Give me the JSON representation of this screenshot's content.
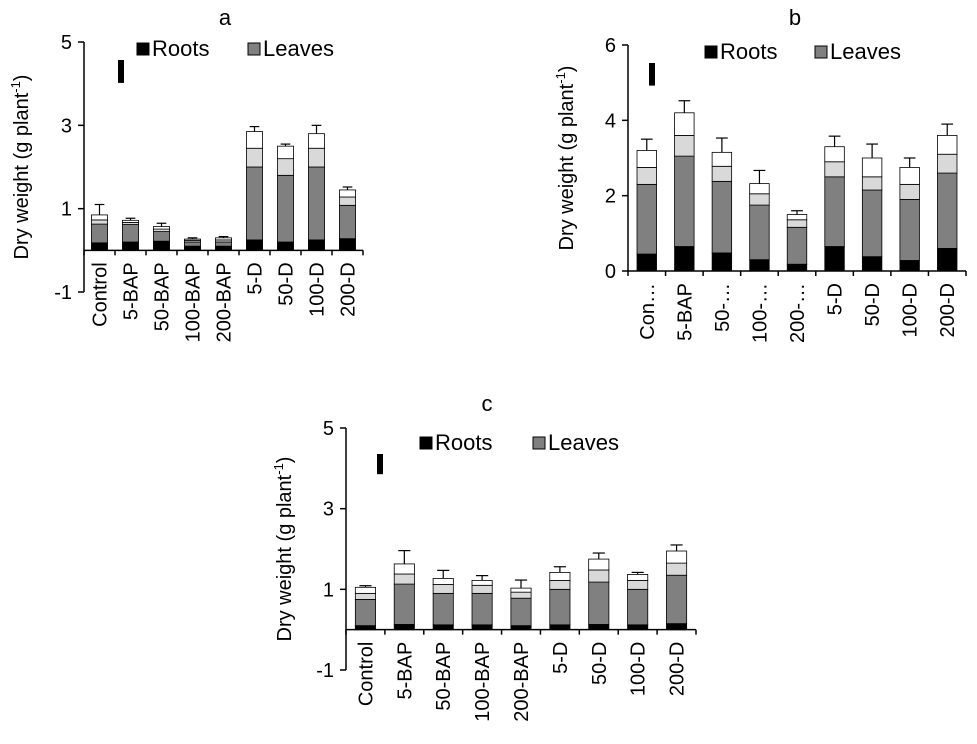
{
  "chart_data": [
    {
      "type": "bar",
      "panel_label": "a",
      "ylabel_main": "Dry weight (g plant",
      "ylabel_sup": "-1",
      "ylabel_close": ")",
      "ylim": [
        -1,
        5
      ],
      "yticks": [
        "-1",
        "1",
        "3",
        "5"
      ],
      "ytick_values": [
        -1,
        1,
        3,
        5
      ],
      "categories": [
        "Control",
        "5-BAP",
        "50-BAP",
        "100-BAP",
        "200-BAP",
        "5-D",
        "50-D",
        "100-D",
        "200-D"
      ],
      "series": [
        {
          "name": "Roots",
          "color": "#000000",
          "values": [
            0.18,
            0.2,
            0.22,
            0.1,
            0.1,
            0.25,
            0.2,
            0.25,
            0.28
          ]
        },
        {
          "name": "Leaves",
          "color": "#808080",
          "values": [
            0.45,
            0.42,
            0.23,
            0.1,
            0.1,
            1.75,
            1.6,
            1.75,
            0.8
          ]
        },
        {
          "color": "#d9d9d9",
          "values": [
            0.1,
            0.05,
            0.06,
            0.04,
            0.05,
            0.45,
            0.4,
            0.45,
            0.2
          ]
        },
        {
          "color": "#ffffff",
          "values": [
            0.12,
            0.05,
            0.06,
            0.03,
            0.05,
            0.4,
            0.3,
            0.35,
            0.17
          ]
        }
      ],
      "error": [
        0.25,
        0.05,
        0.08,
        0.03,
        0.03,
        0.12,
        0.05,
        0.2,
        0.07
      ],
      "legend": [
        "Roots",
        "Leaves"
      ],
      "legend_position": "top",
      "lsd_bar": 0.55
    },
    {
      "type": "bar",
      "panel_label": "b",
      "ylabel_main": "Dry weight (g plant",
      "ylabel_sup": "-1",
      "ylabel_close": ")",
      "ylim": [
        0,
        6
      ],
      "yticks": [
        "0",
        "2",
        "4",
        "6"
      ],
      "ytick_values": [
        0,
        2,
        4,
        6
      ],
      "categories": [
        "Con…",
        "5-BAP",
        "50-…",
        "100-…",
        "200-…",
        "5-D",
        "50-D",
        "100-D",
        "200-D"
      ],
      "series": [
        {
          "name": "Roots",
          "color": "#000000",
          "values": [
            0.45,
            0.65,
            0.48,
            0.3,
            0.18,
            0.65,
            0.38,
            0.28,
            0.6
          ]
        },
        {
          "name": "Leaves",
          "color": "#808080",
          "values": [
            1.85,
            2.4,
            1.9,
            1.45,
            0.98,
            1.85,
            1.77,
            1.62,
            2.0
          ]
        },
        {
          "color": "#d9d9d9",
          "values": [
            0.45,
            0.55,
            0.4,
            0.3,
            0.2,
            0.4,
            0.35,
            0.4,
            0.5
          ]
        },
        {
          "color": "#ffffff",
          "values": [
            0.45,
            0.6,
            0.37,
            0.27,
            0.14,
            0.4,
            0.5,
            0.45,
            0.5
          ]
        }
      ],
      "error": [
        0.3,
        0.32,
        0.38,
        0.35,
        0.1,
        0.28,
        0.37,
        0.25,
        0.3
      ],
      "legend": [
        "Roots",
        "Leaves"
      ],
      "legend_position": "top",
      "lsd_bar": 0.6
    },
    {
      "type": "bar",
      "panel_label": "c",
      "ylabel_main": "Dry weight (g plant",
      "ylabel_sup": "-1",
      "ylabel_close": ")",
      "ylim": [
        -1,
        5
      ],
      "yticks": [
        "-1",
        "1",
        "3",
        "5"
      ],
      "ytick_values": [
        -1,
        1,
        3,
        5
      ],
      "categories": [
        "Control",
        "5-BAP",
        "50-BAP",
        "100-BAP",
        "200-BAP",
        "5-D",
        "50-D",
        "100-D",
        "200-D"
      ],
      "series": [
        {
          "name": "Roots",
          "color": "#000000",
          "values": [
            0.1,
            0.13,
            0.12,
            0.12,
            0.1,
            0.12,
            0.13,
            0.12,
            0.15
          ]
        },
        {
          "name": "Leaves",
          "color": "#808080",
          "values": [
            0.65,
            1.0,
            0.78,
            0.78,
            0.68,
            0.88,
            1.05,
            0.88,
            1.2
          ]
        },
        {
          "color": "#d9d9d9",
          "values": [
            0.15,
            0.25,
            0.22,
            0.2,
            0.15,
            0.22,
            0.3,
            0.22,
            0.3
          ]
        },
        {
          "color": "#ffffff",
          "values": [
            0.15,
            0.25,
            0.15,
            0.12,
            0.1,
            0.2,
            0.27,
            0.15,
            0.3
          ]
        }
      ],
      "error": [
        0.04,
        0.33,
        0.2,
        0.12,
        0.2,
        0.14,
        0.15,
        0.05,
        0.15
      ],
      "legend": [
        "Roots",
        "Leaves"
      ],
      "legend_position": "top",
      "lsd_bar": 0.5
    }
  ]
}
